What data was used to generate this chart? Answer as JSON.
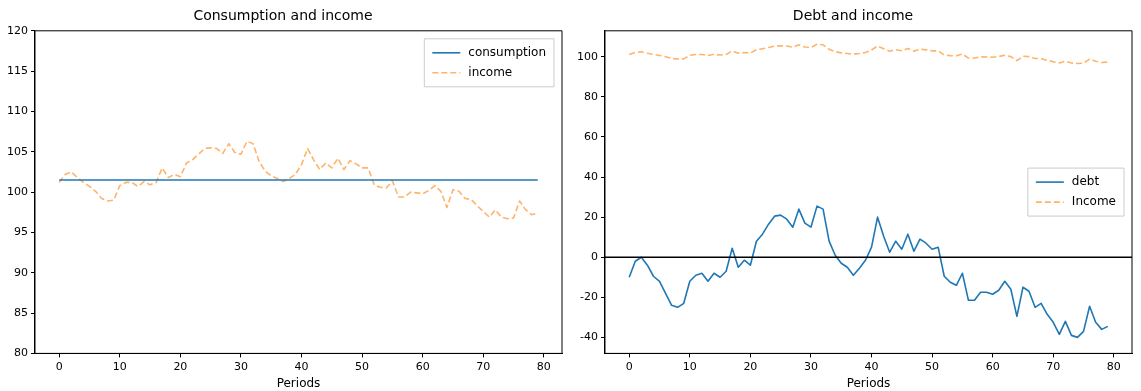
{
  "chart_data": [
    {
      "type": "line",
      "title": "Consumption and income",
      "xlabel": "Periods",
      "x": [
        0,
        1,
        2,
        3,
        4,
        5,
        6,
        7,
        8,
        9,
        10,
        11,
        12,
        13,
        14,
        15,
        16,
        17,
        18,
        19,
        20,
        21,
        22,
        23,
        24,
        25,
        26,
        27,
        28,
        29,
        30,
        31,
        32,
        33,
        34,
        35,
        36,
        37,
        38,
        39,
        40,
        41,
        42,
        43,
        44,
        45,
        46,
        47,
        48,
        49,
        50,
        51,
        52,
        53,
        54,
        55,
        56,
        57,
        58,
        59,
        60,
        61,
        62,
        63,
        64,
        65,
        66,
        67,
        68,
        69,
        70,
        71,
        72,
        73,
        74,
        75,
        76,
        77,
        78,
        79
      ],
      "xlim": [
        -4,
        83
      ],
      "xticks": [
        0,
        10,
        20,
        30,
        40,
        50,
        60,
        70,
        80
      ],
      "ylim": [
        80,
        120
      ],
      "yticks": [
        80,
        85,
        90,
        95,
        100,
        105,
        110,
        115,
        120
      ],
      "grid": false,
      "legend": "top right",
      "marker": "none",
      "series": [
        {
          "name": "consumption",
          "color": "#1f77b4",
          "line_style": "solid",
          "values": [
            101.5,
            101.5,
            101.5,
            101.5,
            101.5,
            101.5,
            101.5,
            101.5,
            101.5,
            101.5,
            101.5,
            101.5,
            101.5,
            101.5,
            101.5,
            101.5,
            101.5,
            101.5,
            101.5,
            101.5,
            101.5,
            101.5,
            101.5,
            101.5,
            101.5,
            101.5,
            101.5,
            101.5,
            101.5,
            101.5,
            101.5,
            101.5,
            101.5,
            101.5,
            101.5,
            101.5,
            101.5,
            101.5,
            101.5,
            101.5,
            101.5,
            101.5,
            101.5,
            101.5,
            101.5,
            101.5,
            101.5,
            101.5,
            101.5,
            101.5,
            101.5,
            101.5,
            101.5,
            101.5,
            101.5,
            101.5,
            101.5,
            101.5,
            101.5,
            101.5,
            101.5,
            101.5,
            101.5,
            101.5,
            101.5,
            101.5,
            101.5,
            101.5,
            101.5,
            101.5,
            101.5,
            101.5,
            101.5,
            101.5,
            101.5,
            101.5,
            101.5,
            101.5,
            101.5,
            101.5
          ]
        },
        {
          "name": "income",
          "color": "#ffb36b",
          "line_style": "dashed",
          "values": [
            101.2,
            102.2,
            102.5,
            101.8,
            101.2,
            100.7,
            100.1,
            99.2,
            98.9,
            99.0,
            100.8,
            101.2,
            101.2,
            100.7,
            101.3,
            100.9,
            101.2,
            103.0,
            101.8,
            102.2,
            101.9,
            103.6,
            104.0,
            104.7,
            105.4,
            105.5,
            105.4,
            104.8,
            106.0,
            104.9,
            104.7,
            106.3,
            106.0,
            103.8,
            102.6,
            102.0,
            101.7,
            101.3,
            101.7,
            102.2,
            103.4,
            105.4,
            104.0,
            102.8,
            103.6,
            103.0,
            104.2,
            102.8,
            103.9,
            103.5,
            103.0,
            103.0,
            100.9,
            100.6,
            100.5,
            101.4,
            99.4,
            99.4,
            100.0,
            99.9,
            99.8,
            100.2,
            100.8,
            100.1,
            98.1,
            100.3,
            100.1,
            99.2,
            99.1,
            98.3,
            97.6,
            96.9,
            97.8,
            96.9,
            96.7,
            96.8,
            98.9,
            97.8,
            97.2,
            97.4
          ]
        }
      ]
    },
    {
      "type": "line",
      "title": "Debt and income",
      "xlabel": "Periods",
      "x": [
        0,
        1,
        2,
        3,
        4,
        5,
        6,
        7,
        8,
        9,
        10,
        11,
        12,
        13,
        14,
        15,
        16,
        17,
        18,
        19,
        20,
        21,
        22,
        23,
        24,
        25,
        26,
        27,
        28,
        29,
        30,
        31,
        32,
        33,
        34,
        35,
        36,
        37,
        38,
        39,
        40,
        41,
        42,
        43,
        44,
        45,
        46,
        47,
        48,
        49,
        50,
        51,
        52,
        53,
        54,
        55,
        56,
        57,
        58,
        59,
        60,
        61,
        62,
        63,
        64,
        65,
        66,
        67,
        68,
        69,
        70,
        71,
        72,
        73,
        74,
        75,
        76,
        77,
        78,
        79
      ],
      "xlim": [
        -4,
        83
      ],
      "xticks": [
        0,
        10,
        20,
        30,
        40,
        50,
        60,
        70,
        80
      ],
      "ylim": [
        -48,
        113
      ],
      "yticks": [
        -40,
        -20,
        0,
        20,
        40,
        60,
        80,
        100
      ],
      "grid": false,
      "legend": "right",
      "marker": "none",
      "ref_lines": [
        {
          "axis": "y",
          "value": 0,
          "color": "#000000"
        }
      ],
      "series": [
        {
          "name": "debt",
          "color": "#1f77b4",
          "line_style": "solid",
          "values": [
            -10,
            -2,
            0,
            -4,
            -9.5,
            -12,
            -18,
            -24,
            -25,
            -23,
            -12,
            -9,
            -8,
            -12,
            -8,
            -10,
            -7,
            4.5,
            -5,
            -1.5,
            -4,
            8,
            11.5,
            16.5,
            20.5,
            21,
            19,
            15,
            24,
            17,
            15,
            25.5,
            24,
            8,
            1,
            -3,
            -5,
            -9,
            -5.5,
            -1.5,
            5,
            20,
            10.5,
            2.5,
            8,
            4,
            11.5,
            3,
            9,
            7,
            4,
            5,
            -9.5,
            -12.5,
            -14,
            -8,
            -21.5,
            -21.5,
            -17.5,
            -17.5,
            -18.5,
            -16.5,
            -12,
            -16,
            -29.5,
            -15,
            -17,
            -25,
            -23,
            -28.5,
            -32.5,
            -38.5,
            -32,
            -39,
            -40,
            -37,
            -24.5,
            -32.5,
            -36,
            -34.5
          ]
        },
        {
          "name": "Income",
          "color": "#ffb36b",
          "line_style": "dashed",
          "values": [
            101.2,
            102.2,
            102.5,
            101.8,
            101.2,
            100.7,
            100.1,
            99.2,
            98.9,
            99.0,
            100.8,
            101.2,
            101.2,
            100.7,
            101.3,
            100.9,
            101.2,
            103.0,
            101.8,
            102.2,
            101.9,
            103.6,
            104.0,
            104.7,
            105.4,
            105.5,
            105.4,
            104.8,
            106.0,
            104.9,
            104.7,
            106.3,
            106.0,
            103.8,
            102.6,
            102.0,
            101.7,
            101.3,
            101.7,
            102.2,
            103.4,
            105.4,
            104.0,
            102.8,
            103.6,
            103.0,
            104.2,
            102.8,
            103.9,
            103.5,
            103.0,
            103.0,
            100.9,
            100.6,
            100.5,
            101.4,
            99.4,
            99.4,
            100.0,
            99.9,
            99.8,
            100.2,
            100.8,
            100.1,
            98.1,
            100.3,
            100.1,
            99.2,
            99.1,
            98.3,
            97.6,
            96.9,
            97.8,
            96.9,
            96.7,
            96.8,
            98.9,
            97.8,
            97.2,
            97.4
          ]
        }
      ]
    }
  ]
}
